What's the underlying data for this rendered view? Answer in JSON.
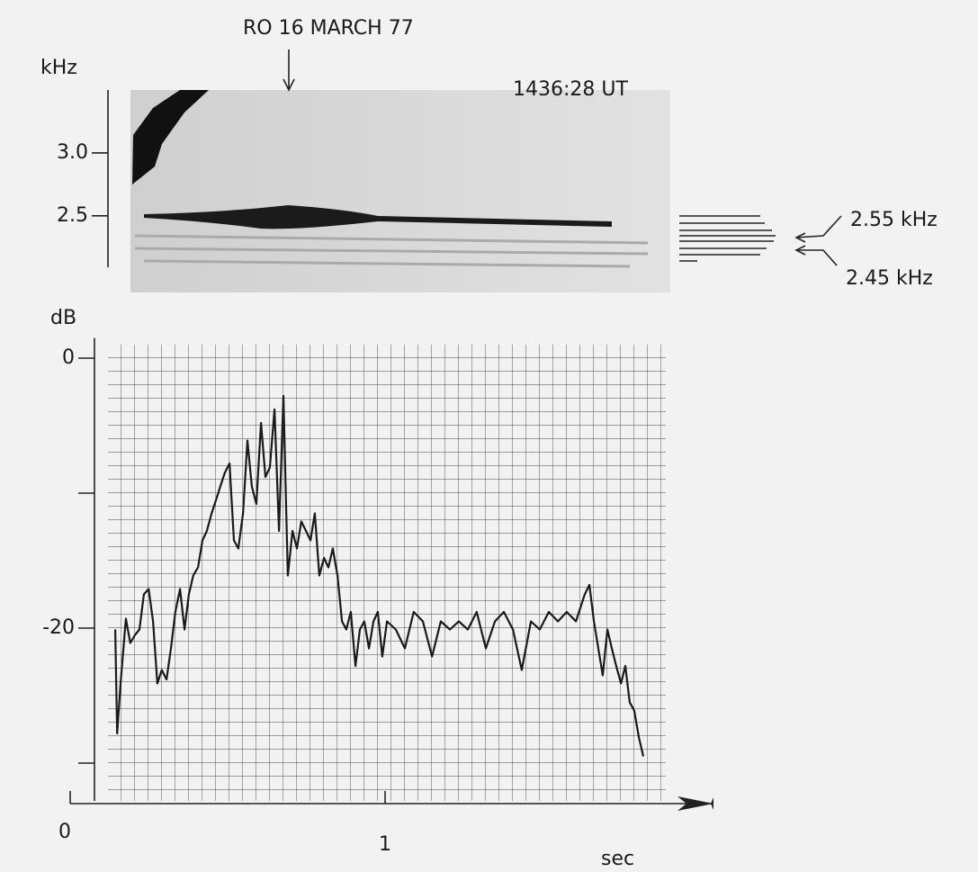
{
  "chart_data": [
    {
      "type": "spectrogram",
      "ylabel": "kHz",
      "ylim": [
        2.07,
        3.5
      ],
      "yticks": [
        {
          "value": 3,
          "label": "3.0"
        },
        2.5
      ],
      "annotations": [
        "RO  16 MARCH 77",
        "1436:28 UT",
        "2.55 kHz",
        "2.45 kHz"
      ]
    },
    {
      "type": "line",
      "ylabel": "dB",
      "xlabel": "sec",
      "color": "#1a1a1a",
      "xlim": [
        0,
        2
      ],
      "ylim": [
        -33,
        1.5
      ],
      "xticks": [
        0,
        1
      ],
      "yticks": [
        0,
        -20
      ],
      "minor_yticks": [
        -10,
        -30
      ],
      "x": [
        0.143,
        0.149,
        0.16,
        0.177,
        0.191,
        0.206,
        0.22,
        0.234,
        0.249,
        0.263,
        0.277,
        0.291,
        0.306,
        0.32,
        0.334,
        0.349,
        0.363,
        0.377,
        0.391,
        0.406,
        0.42,
        0.434,
        0.449,
        0.463,
        0.477,
        0.491,
        0.506,
        0.52,
        0.534,
        0.549,
        0.563,
        0.577,
        0.591,
        0.606,
        0.62,
        0.634,
        0.649,
        0.663,
        0.677,
        0.691,
        0.706,
        0.72,
        0.734,
        0.749,
        0.763,
        0.777,
        0.791,
        0.806,
        0.82,
        0.834,
        0.849,
        0.863,
        0.877,
        0.891,
        0.906,
        0.92,
        0.934,
        0.949,
        0.963,
        0.977,
        0.991,
        1.006,
        1.034,
        1.063,
        1.091,
        1.12,
        1.149,
        1.177,
        1.206,
        1.234,
        1.263,
        1.291,
        1.32,
        1.349,
        1.377,
        1.406,
        1.434,
        1.463,
        1.491,
        1.52,
        1.549,
        1.577,
        1.606,
        1.634,
        1.649,
        1.663,
        1.677,
        1.691,
        1.706,
        1.72,
        1.734,
        1.749,
        1.763,
        1.777,
        1.791,
        1.806,
        1.82
      ],
      "values": [
        -20.1,
        -27.8,
        -24.1,
        -19.3,
        -21.1,
        -20.5,
        -20.1,
        -17.5,
        -17.1,
        -19.5,
        -24.1,
        -23.1,
        -23.8,
        -21.5,
        -18.8,
        -17.1,
        -20.1,
        -17.5,
        -16.1,
        -15.5,
        -13.5,
        -12.8,
        -11.5,
        -10.5,
        -9.5,
        -8.5,
        -7.8,
        -13.5,
        -14.1,
        -11.5,
        -6.1,
        -9.5,
        -10.8,
        -4.8,
        -8.8,
        -8.1,
        -3.8,
        -12.8,
        -2.8,
        -16.1,
        -12.8,
        -14.1,
        -12.1,
        -12.8,
        -13.5,
        -11.5,
        -16.1,
        -14.8,
        -15.5,
        -14.1,
        -16.1,
        -19.5,
        -20.1,
        -18.8,
        -22.8,
        -20.1,
        -19.5,
        -21.5,
        -19.5,
        -18.8,
        -22.1,
        -19.5,
        -20.1,
        -21.5,
        -18.8,
        -19.5,
        -22.1,
        -19.5,
        -20.1,
        -19.5,
        -20.1,
        -18.8,
        -21.5,
        -19.5,
        -18.8,
        -20.1,
        -23.1,
        -19.5,
        -20.1,
        -18.8,
        -19.5,
        -18.8,
        -19.5,
        -17.5,
        -16.8,
        -19.5,
        -21.5,
        -23.5,
        -20.1,
        -21.5,
        -22.8,
        -24.1,
        -22.8,
        -25.5,
        -26.1,
        -28.1,
        -29.5
      ]
    }
  ]
}
